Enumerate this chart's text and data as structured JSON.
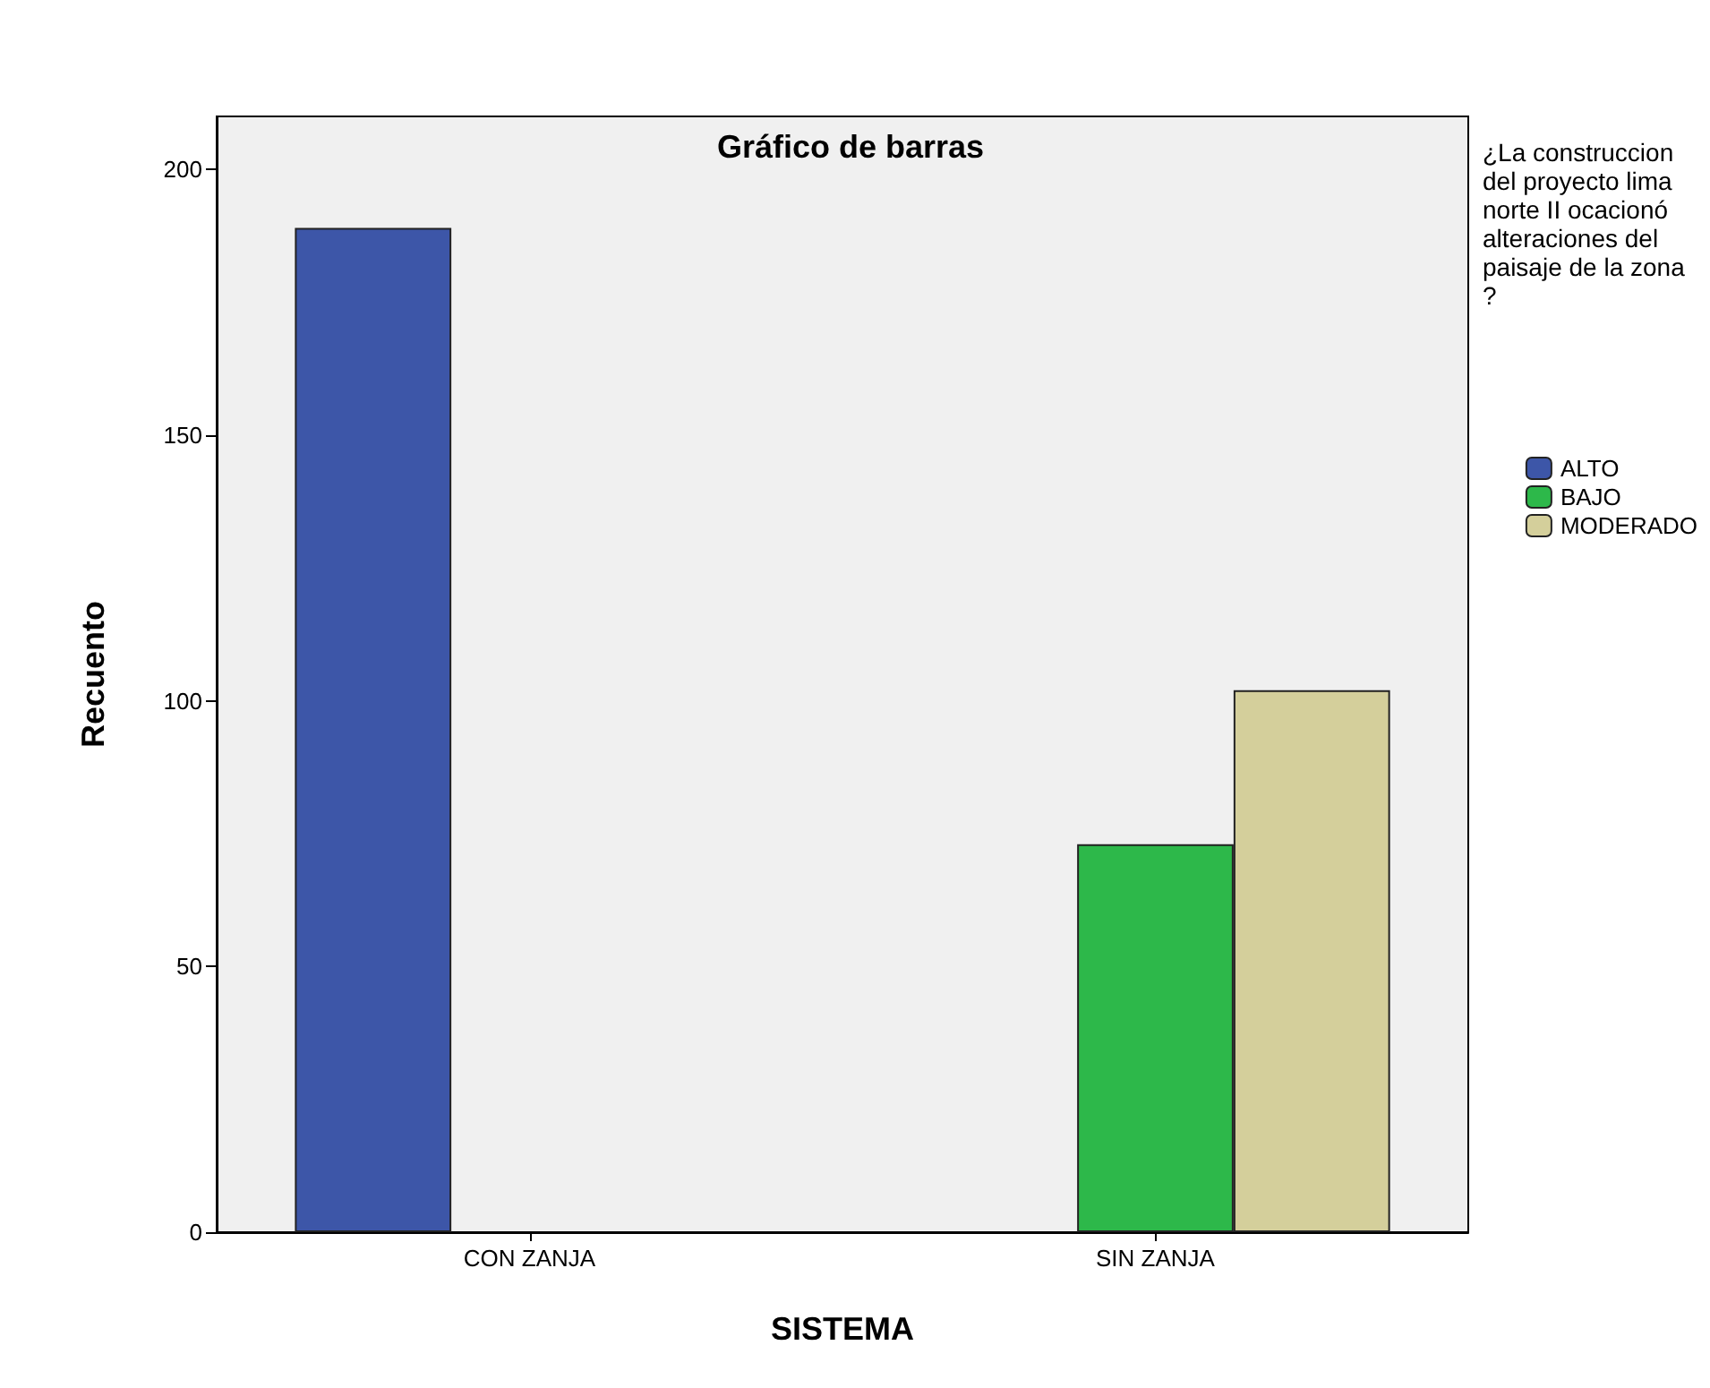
{
  "chart_data": {
    "type": "bar",
    "title": "Gráfico de barras",
    "xlabel": "SISTEMA",
    "ylabel": "Recuento",
    "legend_title": "¿La construccion del proyecto lima norte II ocacionó alteraciones del paisaje de la zona ?",
    "categories": [
      "CON ZANJA",
      "SIN ZANJA"
    ],
    "series": [
      {
        "name": "ALTO",
        "color": "#3d56a8",
        "values": [
          189,
          null
        ]
      },
      {
        "name": "BAJO",
        "color": "#2db84a",
        "values": [
          null,
          73
        ]
      },
      {
        "name": "MODERADO",
        "color": "#d4cf9b",
        "values": [
          null,
          102
        ]
      }
    ],
    "ylim": [
      0,
      210
    ],
    "yticks": [
      0,
      50,
      100,
      150,
      200
    ],
    "grid": false,
    "legend": "right"
  }
}
